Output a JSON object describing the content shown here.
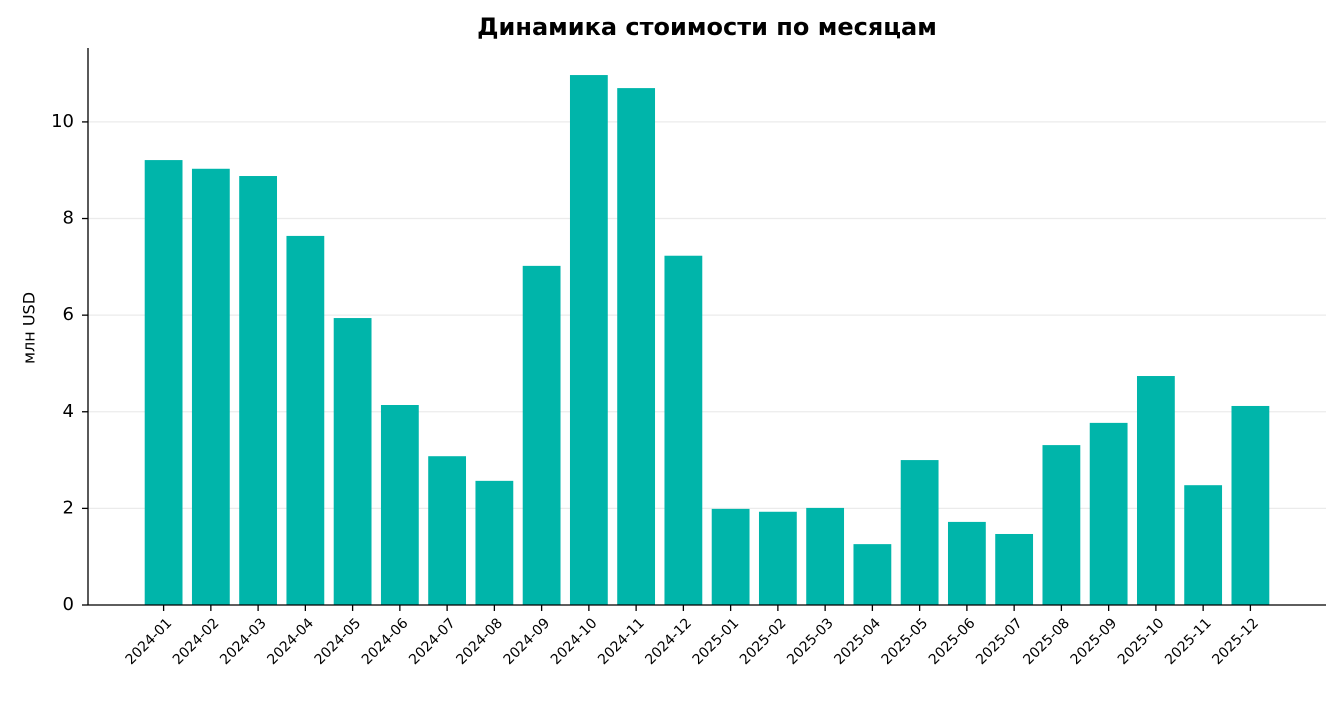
{
  "chart_data": {
    "type": "bar",
    "title": "Динамика стоимости по месяцам",
    "y_label": "млн USD",
    "categories": [
      "2024-01",
      "2024-02",
      "2024-03",
      "2024-04",
      "2024-05",
      "2024-06",
      "2024-07",
      "2024-08",
      "2024-09",
      "2024-10",
      "2024-11",
      "2024-12",
      "2025-01",
      "2025-02",
      "2025-03",
      "2025-04",
      "2025-05",
      "2025-06",
      "2025-07",
      "2025-08",
      "2025-09",
      "2025-10",
      "2025-11",
      "2025-12"
    ],
    "values": [
      9.21,
      9.03,
      8.88,
      7.64,
      5.94,
      4.14,
      3.08,
      2.57,
      7.02,
      10.97,
      10.7,
      7.23,
      1.99,
      1.93,
      2.01,
      1.26,
      3.0,
      1.72,
      1.47,
      3.31,
      3.77,
      4.74,
      2.48,
      4.12
    ],
    "color": "#00b5aa",
    "ylim": [
      0,
      11.53
    ],
    "yticks": [
      0,
      2,
      4,
      6,
      8,
      10
    ],
    "grid": true
  }
}
